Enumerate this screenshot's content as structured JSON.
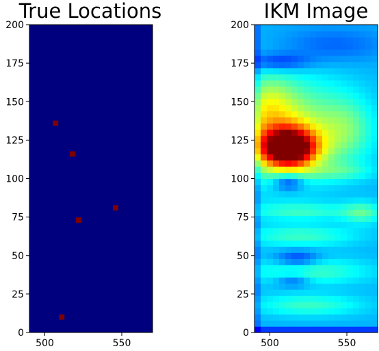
{
  "chart_data": [
    {
      "type": "heatmap",
      "title": "True Locations",
      "xlabel": "",
      "ylabel": "",
      "xlim": [
        490,
        570
      ],
      "ylim": [
        0,
        200
      ],
      "x_ticks": [
        "500",
        "550"
      ],
      "x_tick_values": [
        500,
        550
      ],
      "y_ticks": [
        "0",
        "25",
        "50",
        "75",
        "100",
        "125",
        "150",
        "175",
        "200"
      ],
      "y_tick_values": [
        0,
        25,
        50,
        75,
        100,
        125,
        150,
        175,
        200
      ],
      "colormap": "jet",
      "background_color": "#00007f",
      "marker_color": "#7f0000",
      "points": [
        {
          "x": 507,
          "y": 136
        },
        {
          "x": 518,
          "y": 116
        },
        {
          "x": 546,
          "y": 81
        },
        {
          "x": 522,
          "y": 73
        },
        {
          "x": 511,
          "y": 10
        }
      ]
    },
    {
      "type": "heatmap",
      "title": "IKM Image",
      "xlabel": "",
      "ylabel": "",
      "xlim": [
        490,
        570
      ],
      "ylim": [
        0,
        200
      ],
      "x_ticks": [
        "500",
        "550"
      ],
      "x_tick_values": [
        500,
        550
      ],
      "y_ticks": [
        "0",
        "25",
        "50",
        "75",
        "100",
        "125",
        "150",
        "175",
        "200"
      ],
      "y_tick_values": [
        0,
        25,
        50,
        75,
        100,
        125,
        150,
        175,
        200
      ],
      "colormap": "jet",
      "hotspots": [
        {
          "x": 512,
          "y": 120,
          "sx": 13,
          "sy": 9,
          "amp": 0.74
        },
        {
          "x": 505,
          "y": 133,
          "sx": 30,
          "sy": 22,
          "amp": 0.3
        },
        {
          "x": 550,
          "y": 132,
          "sx": 12,
          "sy": 14,
          "amp": 0.12
        },
        {
          "x": 560,
          "y": 78,
          "sx": 9,
          "sy": 5,
          "amp": 0.14
        },
        {
          "x": 520,
          "y": 79,
          "sx": 26,
          "sy": 4,
          "amp": 0.12
        },
        {
          "x": 520,
          "y": 63,
          "sx": 26,
          "sy": 5,
          "amp": 0.13
        },
        {
          "x": 525,
          "y": 40,
          "sx": 28,
          "sy": 6,
          "amp": 0.14
        },
        {
          "x": 525,
          "y": 18,
          "sx": 25,
          "sy": 5,
          "amp": 0.13
        },
        {
          "x": 545,
          "y": 105,
          "sx": 15,
          "sy": 4,
          "amp": 0.1
        },
        {
          "x": 500,
          "y": 150,
          "sx": 10,
          "sy": 12,
          "amp": 0.1
        }
      ],
      "cold_spots": [
        {
          "x": 505,
          "y": 176,
          "sx": 15,
          "sy": 4,
          "amp": 0.14
        },
        {
          "x": 512,
          "y": 98,
          "sx": 7,
          "sy": 4,
          "amp": 0.18
        },
        {
          "x": 518,
          "y": 48,
          "sx": 10,
          "sy": 4,
          "amp": 0.14
        },
        {
          "x": 515,
          "y": 34,
          "sx": 8,
          "sy": 3,
          "amp": 0.12
        },
        {
          "x": 540,
          "y": 187,
          "sx": 25,
          "sy": 8,
          "amp": 0.08
        }
      ],
      "base_level": 0.3
    }
  ]
}
